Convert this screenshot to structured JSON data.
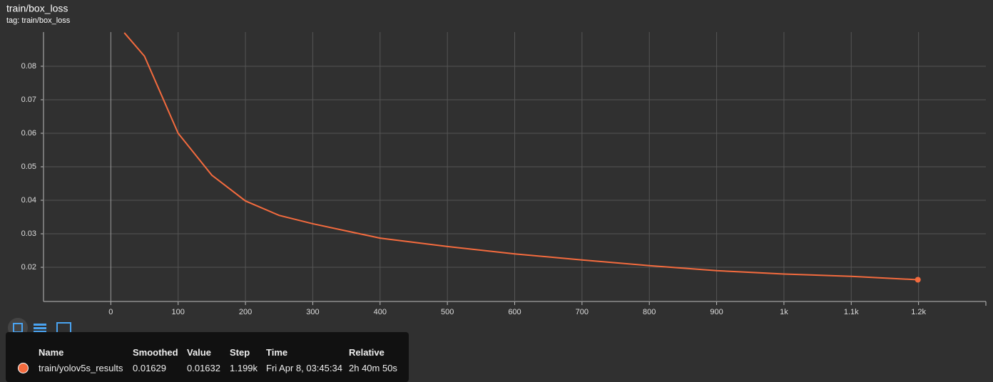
{
  "chart_data": {
    "type": "line",
    "title": "train/box_loss",
    "subtitle": "tag: train/box_loss",
    "x": [
      20,
      50,
      100,
      150,
      200,
      250,
      300,
      400,
      500,
      600,
      700,
      800,
      900,
      1000,
      1100,
      1199
    ],
    "series": [
      {
        "name": "train/yolov5s_results",
        "color": "#f46b3e",
        "values": [
          0.09,
          0.083,
          0.06,
          0.0475,
          0.0398,
          0.0355,
          0.033,
          0.0287,
          0.0262,
          0.024,
          0.0222,
          0.0205,
          0.019,
          0.018,
          0.0173,
          0.01629
        ]
      }
    ],
    "xlim": [
      -100,
      1300
    ],
    "xticks": [
      0,
      100,
      200,
      300,
      400,
      500,
      600,
      700,
      800,
      900,
      {
        "value": 1000,
        "label": "1k"
      },
      {
        "value": 1100,
        "label": "1.1k"
      },
      {
        "value": 1200,
        "label": "1.2k"
      }
    ],
    "ylim": [
      0.0098,
      0.0902
    ],
    "yticks": [
      0.02,
      0.03,
      0.04,
      0.05,
      0.06,
      0.07,
      0.08
    ],
    "grid": true
  },
  "tooltip": {
    "headers": [
      "Name",
      "Smoothed",
      "Value",
      "Step",
      "Time",
      "Relative"
    ],
    "row": [
      "train/yolov5s_results",
      "0.01629",
      "0.01632",
      "1.199k",
      "Fri Apr 8, 03:45:34",
      "2h 40m 50s"
    ]
  }
}
